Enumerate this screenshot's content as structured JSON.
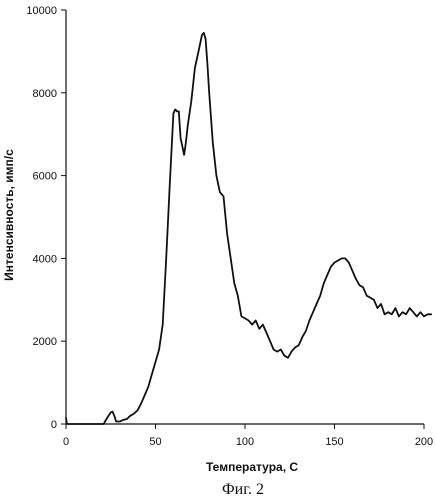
{
  "chart_data": {
    "type": "line",
    "title": "",
    "xlabel": "Температура, С",
    "ylabel": "Интенсивность, имп/с",
    "xlim": [
      0,
      200
    ],
    "ylim": [
      0,
      10000
    ],
    "x_ticks": [
      0,
      50,
      100,
      150,
      200
    ],
    "y_ticks": [
      0,
      2000,
      4000,
      6000,
      8000,
      10000
    ],
    "grid": false,
    "legend": "none",
    "line_color": "#111111",
    "series": [
      {
        "x": [
          0,
          0.5,
          21,
          23,
          25,
          26,
          27,
          28,
          29,
          30,
          32,
          34,
          36,
          38,
          40,
          42,
          44,
          46,
          48,
          50,
          52,
          54,
          56,
          58,
          60,
          61,
          62,
          63,
          64,
          65,
          66,
          67,
          68,
          70,
          72,
          74,
          76,
          77,
          78,
          79,
          80,
          82,
          84,
          86,
          88,
          90,
          92,
          94,
          96,
          98,
          100,
          102,
          104,
          106,
          108,
          110,
          112,
          114,
          116,
          118,
          120,
          122,
          124,
          126,
          128,
          130,
          132,
          134,
          136,
          138,
          140,
          142,
          144,
          146,
          148,
          150,
          152,
          154,
          156,
          158,
          160,
          162,
          164,
          166,
          168,
          170,
          172,
          174,
          176,
          178,
          180,
          182,
          184,
          186,
          188,
          190,
          192,
          194,
          196,
          198,
          200,
          202,
          204
        ],
        "y": [
          150,
          0,
          0,
          150,
          280,
          300,
          200,
          60,
          60,
          60,
          100,
          120,
          200,
          250,
          330,
          500,
          700,
          900,
          1200,
          1500,
          1800,
          2400,
          4000,
          5800,
          7500,
          7600,
          7550,
          7550,
          6900,
          6700,
          6500,
          6800,
          7200,
          7800,
          8600,
          9000,
          9400,
          9450,
          9300,
          8700,
          8000,
          6800,
          6000,
          5600,
          5500,
          4600,
          4000,
          3400,
          3100,
          2600,
          2550,
          2500,
          2400,
          2500,
          2300,
          2400,
          2200,
          2000,
          1800,
          1750,
          1800,
          1650,
          1600,
          1750,
          1850,
          1900,
          2100,
          2250,
          2500,
          2700,
          2900,
          3100,
          3400,
          3600,
          3800,
          3900,
          3950,
          4000,
          4000,
          3900,
          3700,
          3500,
          3350,
          3300,
          3100,
          3050,
          3000,
          2800,
          2900,
          2650,
          2700,
          2650,
          2800,
          2600,
          2700,
          2650,
          2800,
          2700,
          2600,
          2700,
          2600,
          2650,
          2650
        ]
      }
    ]
  },
  "caption": "Фиг. 2"
}
